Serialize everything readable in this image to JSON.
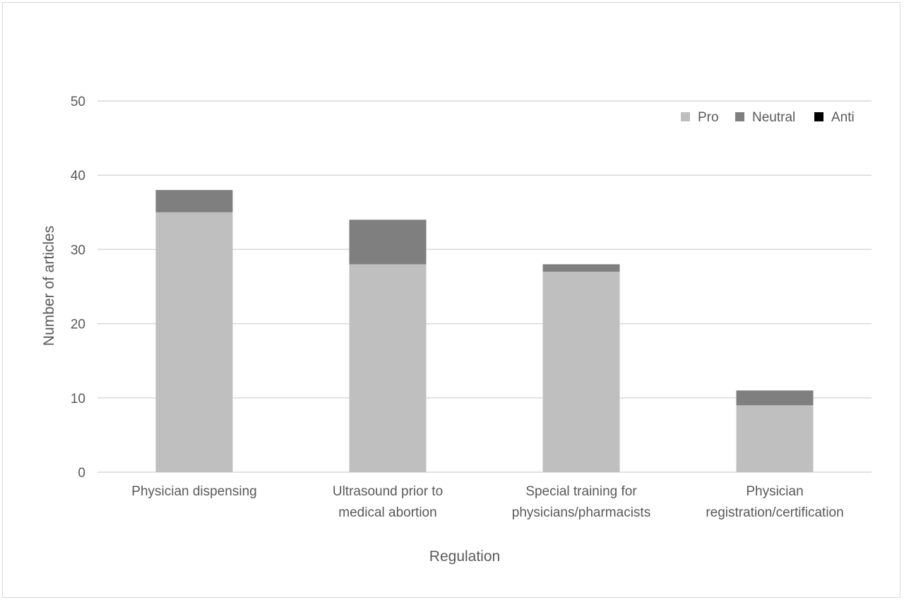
{
  "chart_data": {
    "type": "bar",
    "stacked": true,
    "title": "",
    "xlabel": "Regulation",
    "ylabel": "Number of articles",
    "ylim": [
      0,
      50
    ],
    "yticks": [
      0,
      10,
      20,
      30,
      40,
      50
    ],
    "grid": true,
    "legend_position": "top-right",
    "categories": [
      [
        "Physician dispensing"
      ],
      [
        "Ultrasound prior to",
        "medical abortion"
      ],
      [
        "Special training for",
        "physicians/pharmacists"
      ],
      [
        "Physician",
        "registration/certification"
      ]
    ],
    "series": [
      {
        "name": "Pro",
        "color": "#bfbfbf",
        "values": [
          35,
          28,
          27,
          9
        ]
      },
      {
        "name": "Neutral",
        "color": "#7f7f7f",
        "values": [
          3,
          6,
          1,
          2
        ]
      },
      {
        "name": "Anti",
        "color": "#000000",
        "values": [
          0,
          0,
          0,
          0
        ]
      }
    ],
    "colors": {
      "grid": "#d9d9d9",
      "text": "#595959"
    }
  }
}
